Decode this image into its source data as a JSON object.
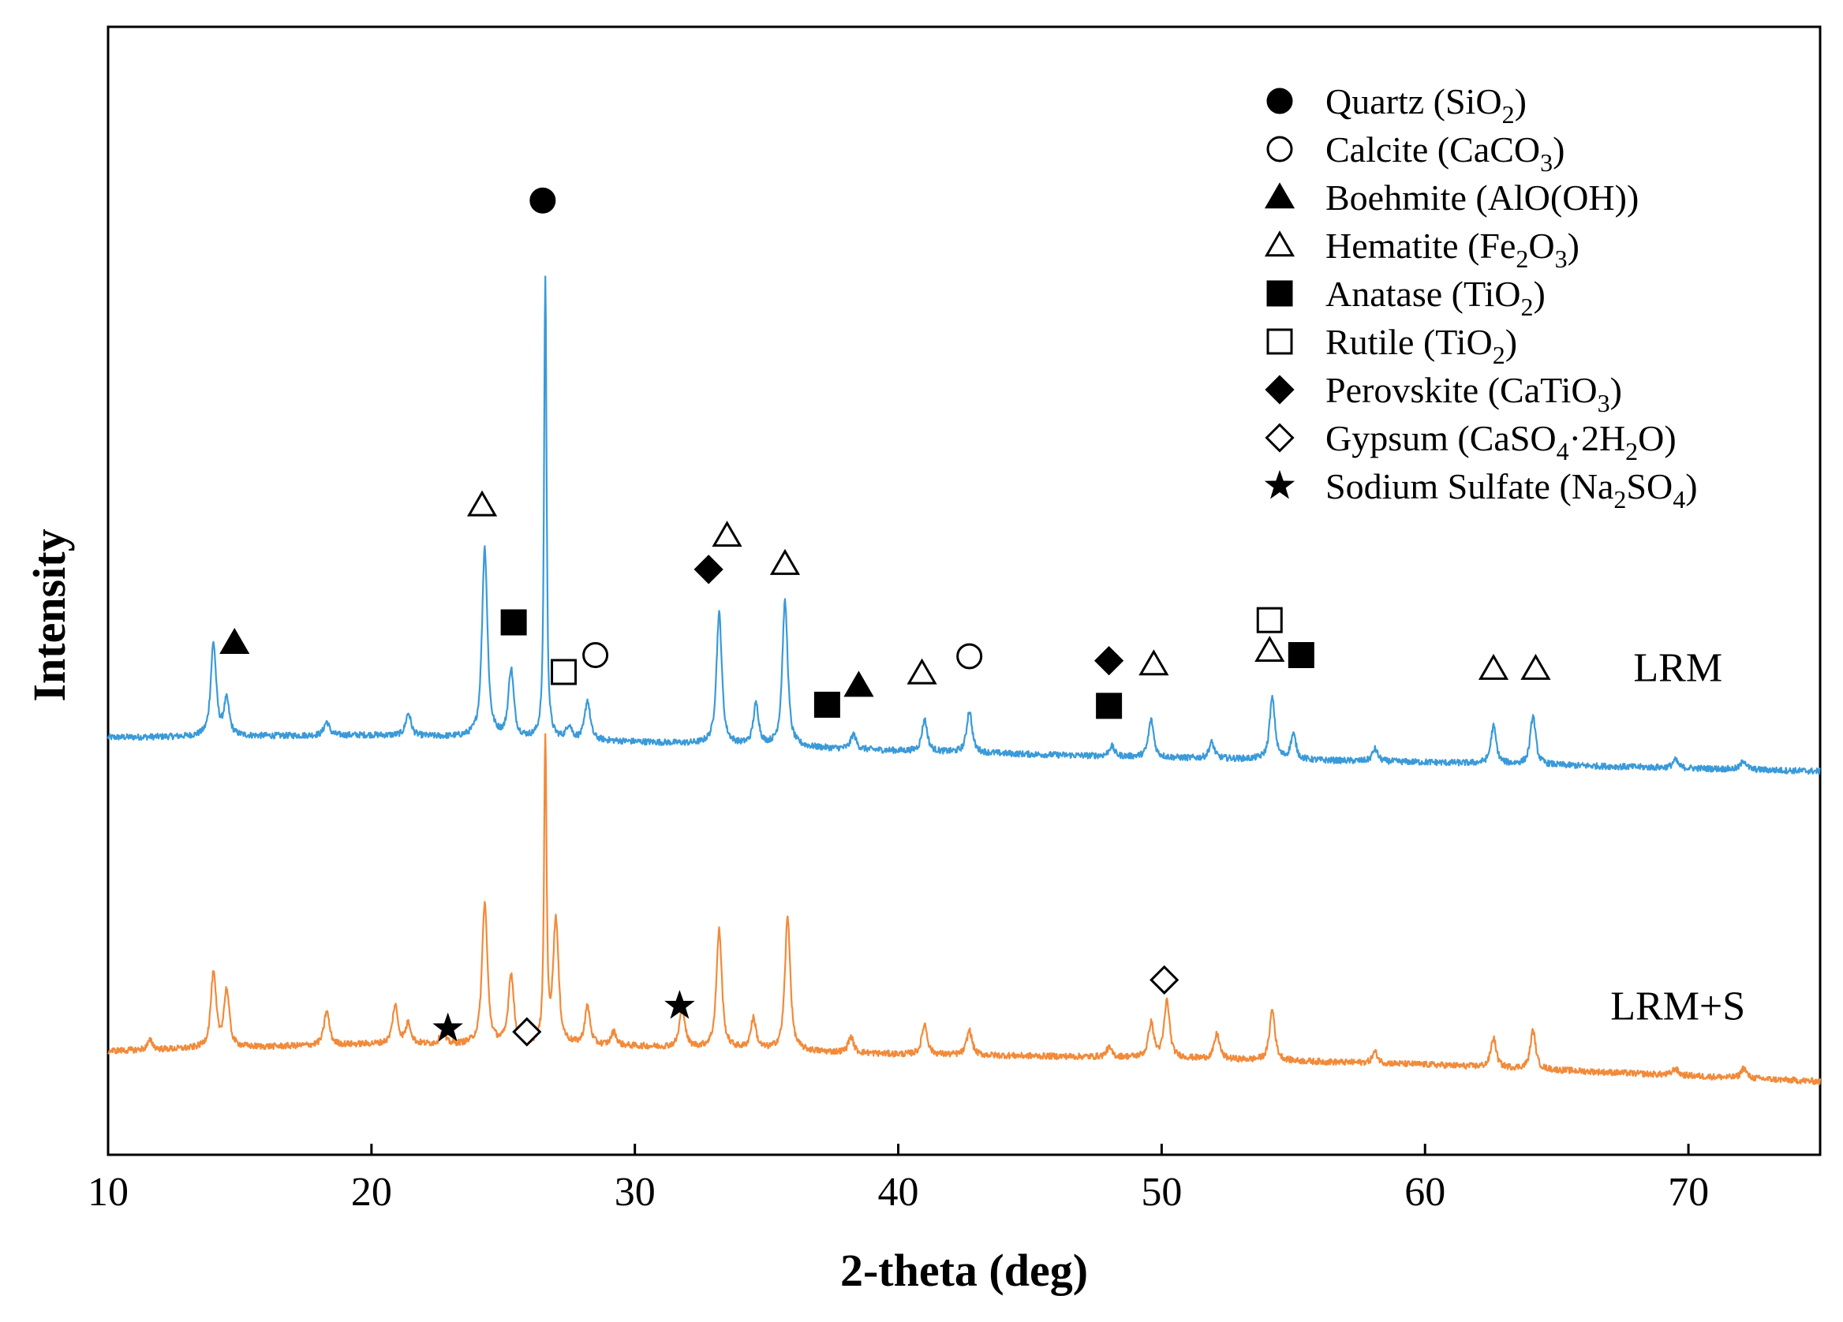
{
  "chart_data": {
    "type": "line",
    "xlabel": "2-theta (deg)",
    "ylabel": "Intensity",
    "xlim": [
      10,
      75
    ],
    "ylim": [
      0,
      100
    ],
    "xticks": [
      10,
      20,
      30,
      40,
      50,
      60,
      70
    ],
    "xtick_labels": [
      "10",
      "20",
      "30",
      "40",
      "50",
      "60",
      "70"
    ],
    "grid": false,
    "colors": {
      "LRM": "#3a9ad9",
      "LRM+S": "#f28a3a",
      "marker": "#000000"
    },
    "series": [
      {
        "name": "LRM",
        "label": "LRM",
        "color": "#3a9ad9",
        "baseline": [
          [
            10,
            37.0
          ],
          [
            20,
            37.2
          ],
          [
            30,
            36.6
          ],
          [
            40,
            35.8
          ],
          [
            50,
            35.2
          ],
          [
            60,
            34.8
          ],
          [
            75,
            34.0
          ]
        ],
        "peaks": [
          {
            "x": 14.0,
            "h": 8.2
          },
          {
            "x": 14.5,
            "h": 3.1
          },
          {
            "x": 18.3,
            "h": 1.2
          },
          {
            "x": 21.4,
            "h": 2.0
          },
          {
            "x": 24.3,
            "h": 16.8
          },
          {
            "x": 25.3,
            "h": 6.0
          },
          {
            "x": 26.6,
            "h": 41.0
          },
          {
            "x": 27.5,
            "h": 1.2
          },
          {
            "x": 28.2,
            "h": 3.5
          },
          {
            "x": 33.2,
            "h": 11.6
          },
          {
            "x": 34.6,
            "h": 3.6
          },
          {
            "x": 35.7,
            "h": 12.8
          },
          {
            "x": 38.3,
            "h": 1.3
          },
          {
            "x": 41.0,
            "h": 2.8
          },
          {
            "x": 42.7,
            "h": 3.7
          },
          {
            "x": 48.1,
            "h": 0.9
          },
          {
            "x": 49.6,
            "h": 3.3
          },
          {
            "x": 51.9,
            "h": 1.4
          },
          {
            "x": 54.2,
            "h": 5.4
          },
          {
            "x": 55.0,
            "h": 2.2
          },
          {
            "x": 58.1,
            "h": 1.1
          },
          {
            "x": 62.6,
            "h": 3.3
          },
          {
            "x": 64.1,
            "h": 4.3
          },
          {
            "x": 69.5,
            "h": 0.7
          },
          {
            "x": 72.1,
            "h": 0.8
          }
        ]
      },
      {
        "name": "LRM+S",
        "label": "LRM+S",
        "color": "#f28a3a",
        "baseline": [
          [
            10,
            9.2
          ],
          [
            20,
            9.8
          ],
          [
            30,
            9.6
          ],
          [
            40,
            8.9
          ],
          [
            50,
            8.6
          ],
          [
            60,
            8.0
          ],
          [
            75,
            6.5
          ]
        ],
        "peaks": [
          {
            "x": 11.6,
            "h": 0.8
          },
          {
            "x": 14.0,
            "h": 6.5
          },
          {
            "x": 14.5,
            "h": 5.0
          },
          {
            "x": 18.3,
            "h": 3.0
          },
          {
            "x": 20.9,
            "h": 3.4
          },
          {
            "x": 21.4,
            "h": 1.8
          },
          {
            "x": 22.7,
            "h": 1.0
          },
          {
            "x": 24.3,
            "h": 12.5
          },
          {
            "x": 25.3,
            "h": 6.2
          },
          {
            "x": 26.6,
            "h": 27.0
          },
          {
            "x": 27.0,
            "h": 11.0
          },
          {
            "x": 28.2,
            "h": 3.4
          },
          {
            "x": 29.2,
            "h": 1.2
          },
          {
            "x": 31.8,
            "h": 3.6
          },
          {
            "x": 33.2,
            "h": 10.5
          },
          {
            "x": 34.5,
            "h": 2.7
          },
          {
            "x": 35.8,
            "h": 11.8
          },
          {
            "x": 38.2,
            "h": 1.4
          },
          {
            "x": 41.0,
            "h": 2.7
          },
          {
            "x": 42.7,
            "h": 2.2
          },
          {
            "x": 48.0,
            "h": 0.8
          },
          {
            "x": 49.6,
            "h": 3.0
          },
          {
            "x": 50.2,
            "h": 5.0
          },
          {
            "x": 52.1,
            "h": 2.2
          },
          {
            "x": 54.2,
            "h": 4.5
          },
          {
            "x": 58.1,
            "h": 1.0
          },
          {
            "x": 62.6,
            "h": 2.6
          },
          {
            "x": 64.1,
            "h": 3.4
          },
          {
            "x": 69.5,
            "h": 0.6
          },
          {
            "x": 72.1,
            "h": 0.9
          }
        ]
      }
    ],
    "legend": {
      "placement": "top-right",
      "entries": [
        {
          "symbol": "filled-circle",
          "label": "Quartz (SiO",
          "sub": "2",
          "tail": ")"
        },
        {
          "symbol": "open-circle",
          "label": "Calcite (CaCO",
          "sub": "3",
          "tail": ")"
        },
        {
          "symbol": "filled-triangle",
          "label": "Boehmite (AlO(OH))",
          "sub": "",
          "tail": ""
        },
        {
          "symbol": "open-triangle",
          "label": "Hematite (Fe",
          "sub": "2",
          "mid": "O",
          "sub2": "3",
          "tail": ")"
        },
        {
          "symbol": "filled-square",
          "label": "Anatase (TiO",
          "sub": "2",
          "tail": ")"
        },
        {
          "symbol": "open-square",
          "label": "Rutile (TiO",
          "sub": "2",
          "tail": ")"
        },
        {
          "symbol": "filled-diamond",
          "label": "Perovskite (CaTiO",
          "sub": "3",
          "tail": ")"
        },
        {
          "symbol": "open-diamond",
          "label": "Gypsum (CaSO",
          "sub": "4",
          "mid": "·2H",
          "sub2": "2",
          "tail": "O)"
        },
        {
          "symbol": "star",
          "label": "Sodium Sulfate (Na",
          "sub": "2",
          "mid": "SO",
          "sub2": "4",
          "tail": ")"
        }
      ]
    },
    "annotations": [
      {
        "symbol": "filled-triangle",
        "x": 14.8,
        "y": 45.4
      },
      {
        "symbol": "open-triangle",
        "x": 24.2,
        "y": 57.6
      },
      {
        "symbol": "filled-square",
        "x": 25.4,
        "y": 47.2
      },
      {
        "symbol": "filled-circle",
        "x": 26.5,
        "y": 84.6
      },
      {
        "symbol": "open-square",
        "x": 27.3,
        "y": 42.8
      },
      {
        "symbol": "open-circle",
        "x": 28.5,
        "y": 44.3
      },
      {
        "symbol": "filled-diamond",
        "x": 32.8,
        "y": 51.9
      },
      {
        "symbol": "open-triangle",
        "x": 33.5,
        "y": 54.9
      },
      {
        "symbol": "open-triangle",
        "x": 35.7,
        "y": 52.4
      },
      {
        "symbol": "filled-square",
        "x": 37.3,
        "y": 39.9
      },
      {
        "symbol": "filled-triangle",
        "x": 38.5,
        "y": 41.6
      },
      {
        "symbol": "open-triangle",
        "x": 40.9,
        "y": 42.7
      },
      {
        "symbol": "open-circle",
        "x": 42.7,
        "y": 44.2
      },
      {
        "symbol": "filled-diamond",
        "x": 48.0,
        "y": 43.8
      },
      {
        "symbol": "filled-square",
        "x": 48.0,
        "y": 39.8
      },
      {
        "symbol": "open-triangle",
        "x": 49.7,
        "y": 43.5
      },
      {
        "symbol": "open-square",
        "x": 54.1,
        "y": 47.4
      },
      {
        "symbol": "open-triangle",
        "x": 54.1,
        "y": 44.7
      },
      {
        "symbol": "filled-square",
        "x": 55.3,
        "y": 44.3
      },
      {
        "symbol": "open-triangle",
        "x": 62.6,
        "y": 43.1
      },
      {
        "symbol": "open-triangle",
        "x": 64.2,
        "y": 43.1
      },
      {
        "symbol": "star",
        "x": 22.9,
        "y": 11.2
      },
      {
        "symbol": "open-diamond",
        "x": 25.9,
        "y": 10.9
      },
      {
        "symbol": "star",
        "x": 31.7,
        "y": 13.2
      },
      {
        "symbol": "open-diamond",
        "x": 50.1,
        "y": 15.5
      }
    ],
    "series_labels": [
      {
        "text": "LRM",
        "x": 69.6,
        "y": 42.0
      },
      {
        "text": "LRM+S",
        "x": 69.6,
        "y": 12.0
      }
    ]
  }
}
